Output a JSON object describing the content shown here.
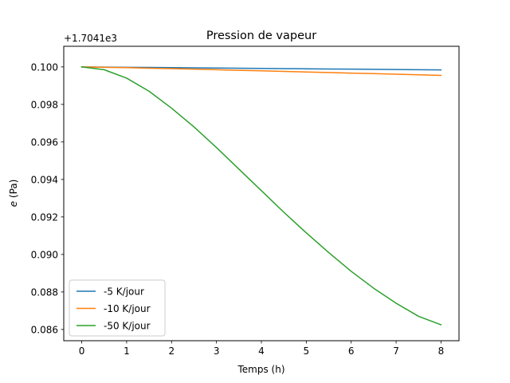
{
  "chart_data": {
    "type": "line",
    "title": "Pression de vapeur",
    "xlabel": "Temps (h)",
    "ylabel_var": "e",
    "ylabel_unit": " (Pa)",
    "offset_label": "+1.7041e3",
    "xlim": [
      -0.4,
      8.4
    ],
    "ylim": [
      0.0854,
      0.1011
    ],
    "xticks": [
      0,
      1,
      2,
      3,
      4,
      5,
      6,
      7,
      8
    ],
    "xtick_labels": [
      "0",
      "1",
      "2",
      "3",
      "4",
      "5",
      "6",
      "7",
      "8"
    ],
    "yticks": [
      0.086,
      0.088,
      0.09,
      0.092,
      0.094,
      0.096,
      0.098,
      0.1
    ],
    "ytick_labels": [
      "0.086",
      "0.088",
      "0.090",
      "0.092",
      "0.094",
      "0.096",
      "0.098",
      "0.100"
    ],
    "legend_position": "lower-left",
    "grid": false,
    "x": [
      0,
      0.5,
      1,
      1.5,
      2,
      2.5,
      3,
      3.5,
      4,
      4.5,
      5,
      5.5,
      6,
      6.5,
      7,
      7.5,
      8
    ],
    "series": [
      {
        "name": "-5 K/jour",
        "color": "#1f77b4",
        "values": [
          0.1,
          0.09999,
          0.09998,
          0.09997,
          0.09996,
          0.09995,
          0.09994,
          0.09993,
          0.09992,
          0.09991,
          0.0999,
          0.09989,
          0.09988,
          0.09987,
          0.09986,
          0.09985,
          0.09984
        ]
      },
      {
        "name": "-10 K/jour",
        "color": "#ff7f0e",
        "values": [
          0.1,
          0.09998,
          0.09996,
          0.09993,
          0.09991,
          0.09988,
          0.09985,
          0.09982,
          0.09979,
          0.09976,
          0.09973,
          0.0997,
          0.09967,
          0.09964,
          0.09961,
          0.09958,
          0.09955
        ]
      },
      {
        "name": "-50 K/jour",
        "color": "#2ca02c",
        "values": [
          0.1,
          0.09985,
          0.0994,
          0.0987,
          0.0978,
          0.0968,
          0.0957,
          0.09455,
          0.0934,
          0.09225,
          0.09115,
          0.0901,
          0.0891,
          0.0882,
          0.0874,
          0.0867,
          0.08625
        ]
      }
    ]
  }
}
